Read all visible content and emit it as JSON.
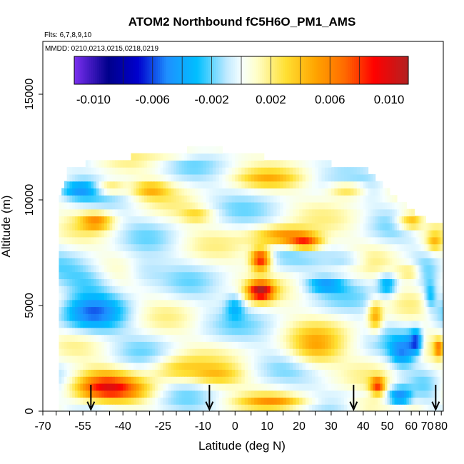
{
  "chart_data": {
    "type": "heatmap",
    "title": "ATOM2 Northbound fC5H6O_PM1_AMS",
    "flights_label": "Flts: 6,7,8,9,10",
    "dates_label": "MMDD: 0210,0213,0215,0218,0219",
    "xlabel": "Latitude (deg N)",
    "ylabel": "Altitude (m)",
    "xlim": [
      -70,
      85
    ],
    "ylim": [
      0,
      17500
    ],
    "x_ticks": [
      -70,
      -55,
      -40,
      -25,
      -10,
      0,
      10,
      20,
      30,
      40,
      50,
      60,
      70,
      80
    ],
    "x_tick_labels": [
      "-70",
      "-55",
      "-40",
      "-25",
      "-10",
      "0",
      "10",
      "20",
      "30",
      "40",
      "50",
      "60",
      "70",
      "80"
    ],
    "x_tick_scale": [
      {
        "lat": -70,
        "pos": 0
      },
      {
        "lat": -55,
        "pos": 0.1
      },
      {
        "lat": -40,
        "pos": 0.2
      },
      {
        "lat": -25,
        "pos": 0.3
      },
      {
        "lat": -10,
        "pos": 0.4
      },
      {
        "lat": 0,
        "pos": 0.48
      },
      {
        "lat": 10,
        "pos": 0.56
      },
      {
        "lat": 20,
        "pos": 0.64
      },
      {
        "lat": 30,
        "pos": 0.72
      },
      {
        "lat": 40,
        "pos": 0.8
      },
      {
        "lat": 50,
        "pos": 0.86
      },
      {
        "lat": 60,
        "pos": 0.92
      },
      {
        "lat": 70,
        "pos": 0.96
      },
      {
        "lat": 80,
        "pos": 0.995
      }
    ],
    "y_ticks": [
      0,
      5000,
      10000,
      15000
    ],
    "y_tick_labels": [
      "0",
      "5000",
      "10000",
      "15000"
    ],
    "colorbar": {
      "min": -0.0113,
      "max": 0.0113,
      "ticks": [
        -0.01,
        -0.006,
        -0.002,
        0.002,
        0.006,
        0.01
      ],
      "tick_labels": [
        "-0.010",
        "-0.006",
        "-0.002",
        "0.002",
        "0.006",
        "0.010"
      ],
      "colors": [
        "#7b2ff0",
        "#00008b",
        "#0000cd",
        "#1e90ff",
        "#00bfff",
        "#bfe9ff",
        "#f5ffff",
        "#ffffcc",
        "#ffe033",
        "#ffa500",
        "#ff6a00",
        "#ff0000",
        "#b22222"
      ],
      "segment_edges": [
        -0.0113,
        -0.008,
        -0.006,
        -0.004,
        -0.002,
        0.0,
        0.002,
        0.004,
        0.006,
        0.008,
        0.0113
      ]
    },
    "arrows_lat": [
      -52,
      -8,
      37,
      76
    ],
    "altitude_ceiling": [
      [
        -63,
        10300
      ],
      [
        -60,
        11700
      ],
      [
        -55,
        11700
      ],
      [
        -40,
        12000
      ],
      [
        -25,
        12200
      ],
      [
        -10,
        12500
      ],
      [
        0,
        12300
      ],
      [
        10,
        12000
      ],
      [
        20,
        12000
      ],
      [
        30,
        11700
      ],
      [
        40,
        11600
      ],
      [
        45,
        11000
      ],
      [
        50,
        10500
      ],
      [
        55,
        10000
      ],
      [
        60,
        9500
      ],
      [
        65,
        9300
      ],
      [
        70,
        9000
      ],
      [
        75,
        8900
      ],
      [
        80,
        8800
      ]
    ],
    "field_anchors": [
      {
        "lat": -50,
        "alt": 9000,
        "value": 0.005,
        "w_lat": 6,
        "w_alt": 400
      },
      {
        "lat": -57,
        "alt": 10500,
        "value": -0.004,
        "w_lat": 8,
        "w_alt": 450
      },
      {
        "lat": -45,
        "alt": 10600,
        "value": 0.004,
        "w_lat": 6,
        "w_alt": 350
      },
      {
        "lat": -52,
        "alt": 4600,
        "value": -0.004,
        "w_lat": 12,
        "w_alt": 900
      },
      {
        "lat": -52,
        "alt": 6200,
        "value": -0.002,
        "w_lat": 10,
        "w_alt": 700
      },
      {
        "lat": -45,
        "alt": 1000,
        "value": 0.006,
        "w_lat": 14,
        "w_alt": 500
      },
      {
        "lat": -48,
        "alt": 1500,
        "value": 0.004,
        "w_lat": 12,
        "w_alt": 600
      },
      {
        "lat": -20,
        "alt": 2000,
        "value": 0.003,
        "w_lat": 10,
        "w_alt": 600
      },
      {
        "lat": -30,
        "alt": 10500,
        "value": 0.004,
        "w_lat": 7,
        "w_alt": 400
      },
      {
        "lat": -33,
        "alt": 6600,
        "value": -0.002,
        "w_lat": 8,
        "w_alt": 700
      },
      {
        "lat": -12,
        "alt": 9300,
        "value": 0.003,
        "w_lat": 6,
        "w_alt": 350
      },
      {
        "lat": 8,
        "alt": 7200,
        "value": 0.009,
        "w_lat": 3,
        "w_alt": 500
      },
      {
        "lat": 8,
        "alt": 5700,
        "value": 0.01,
        "w_lat": 4,
        "w_alt": 450
      },
      {
        "lat": 0,
        "alt": 5000,
        "value": -0.003,
        "w_lat": 3,
        "w_alt": 600
      },
      {
        "lat": 15,
        "alt": 8300,
        "value": 0.006,
        "w_lat": 9,
        "w_alt": 450
      },
      {
        "lat": 22,
        "alt": 8000,
        "value": 0.007,
        "w_lat": 5,
        "w_alt": 350
      },
      {
        "lat": 10,
        "alt": 11000,
        "value": 0.003,
        "w_lat": 10,
        "w_alt": 400
      },
      {
        "lat": 28,
        "alt": 6000,
        "value": -0.004,
        "w_lat": 6,
        "w_alt": 350
      },
      {
        "lat": 25,
        "alt": 3000,
        "value": 0.004,
        "w_lat": 8,
        "w_alt": 900
      },
      {
        "lat": 45,
        "alt": 4500,
        "value": 0.005,
        "w_lat": 3,
        "w_alt": 700
      },
      {
        "lat": 46,
        "alt": 1200,
        "value": 0.007,
        "w_lat": 3,
        "w_alt": 400
      },
      {
        "lat": 55,
        "alt": 700,
        "value": -0.005,
        "w_lat": 5,
        "w_alt": 450
      },
      {
        "lat": 63,
        "alt": 3300,
        "value": -0.006,
        "w_lat": 4,
        "w_alt": 600
      },
      {
        "lat": 56,
        "alt": 2800,
        "value": -0.004,
        "w_lat": 5,
        "w_alt": 700
      },
      {
        "lat": 60,
        "alt": 9000,
        "value": 0.005,
        "w_lat": 6,
        "w_alt": 400
      },
      {
        "lat": 60,
        "alt": 6600,
        "value": 0.003,
        "w_lat": 6,
        "w_alt": 400
      },
      {
        "lat": 50,
        "alt": 6000,
        "value": -0.004,
        "w_lat": 4,
        "w_alt": 500
      },
      {
        "lat": 75,
        "alt": 8000,
        "value": 0.003,
        "w_lat": 5,
        "w_alt": 400
      },
      {
        "lat": 78,
        "alt": 3000,
        "value": 0.005,
        "w_lat": 3,
        "w_alt": 400
      },
      {
        "lat": 72,
        "alt": 5500,
        "value": -0.003,
        "w_lat": 4,
        "w_alt": 600
      },
      {
        "lat": 35,
        "alt": 10500,
        "value": 0.004,
        "w_lat": 6,
        "w_alt": 400
      },
      {
        "lat": 35,
        "alt": 7200,
        "value": -0.002,
        "w_lat": 6,
        "w_alt": 400
      },
      {
        "lat": -5,
        "alt": 1700,
        "value": 0.003,
        "w_lat": 8,
        "w_alt": 500
      },
      {
        "lat": 12,
        "alt": 500,
        "value": 0.004,
        "w_lat": 10,
        "w_alt": 300
      },
      {
        "lat": 40,
        "alt": 300,
        "value": 0.003,
        "w_lat": 8,
        "w_alt": 250
      },
      {
        "lat": -20,
        "alt": 12200,
        "value": 0.002,
        "w_lat": 10,
        "w_alt": 300
      }
    ]
  }
}
